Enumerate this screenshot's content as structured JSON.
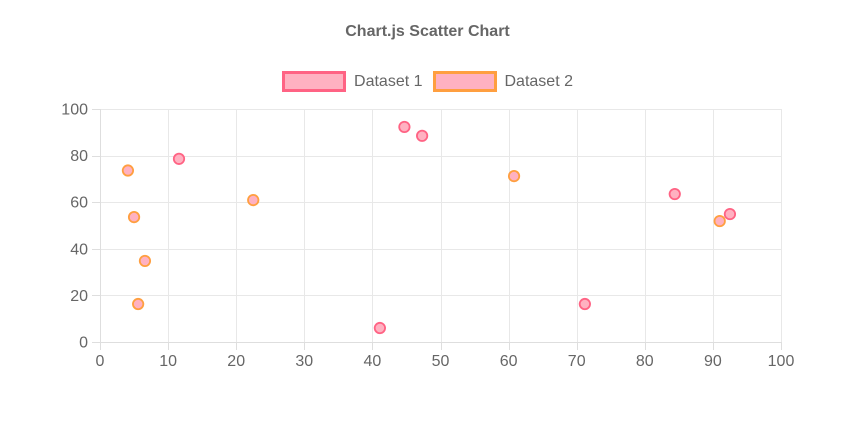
{
  "chart": {
    "title": "Chart.js Scatter Chart"
  },
  "chart_data": {
    "type": "scatter",
    "title": "Chart.js Scatter Chart",
    "xlabel": "",
    "ylabel": "",
    "xlim": [
      0,
      100
    ],
    "ylim": [
      0,
      100
    ],
    "x_ticks": [
      0,
      10,
      20,
      30,
      40,
      50,
      60,
      70,
      80,
      90,
      100
    ],
    "y_ticks": [
      0,
      20,
      40,
      60,
      80,
      100
    ],
    "grid": true,
    "legend_position": "top",
    "series": [
      {
        "name": "Dataset 1",
        "point_fill": "#ffb1c1",
        "point_border": "#ff6384",
        "points": [
          {
            "x": 11.6,
            "y": 78.6
          },
          {
            "x": 44.7,
            "y": 92.3
          },
          {
            "x": 47.3,
            "y": 88.5
          },
          {
            "x": 41.1,
            "y": 6.0
          },
          {
            "x": 71.2,
            "y": 16.3
          },
          {
            "x": 84.4,
            "y": 63.5
          },
          {
            "x": 92.5,
            "y": 54.9
          }
        ]
      },
      {
        "name": "Dataset 2",
        "point_fill": "#ffb1c1",
        "point_border": "#ff9f40",
        "points": [
          {
            "x": 4.1,
            "y": 73.6
          },
          {
            "x": 5.0,
            "y": 53.6
          },
          {
            "x": 6.6,
            "y": 34.8
          },
          {
            "x": 5.6,
            "y": 16.3
          },
          {
            "x": 22.5,
            "y": 60.9
          },
          {
            "x": 60.8,
            "y": 71.2
          },
          {
            "x": 91.0,
            "y": 51.9
          }
        ]
      }
    ],
    "colors": {
      "text": "#666666",
      "gridline": "#e8e8e8",
      "axis_border": "#dedede",
      "background": "#ffffff"
    }
  }
}
